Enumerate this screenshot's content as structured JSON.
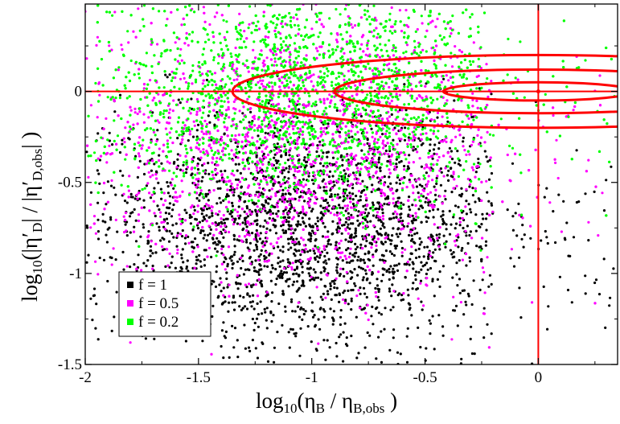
{
  "chart_data": {
    "type": "scatter",
    "xlim": [
      -2,
      0.35
    ],
    "ylim": [
      -1.5,
      0.48
    ],
    "x_ticks": [
      -2,
      -1.5,
      -1,
      -0.5,
      0
    ],
    "y_ticks": [
      -1.5,
      -1,
      -0.5,
      0
    ],
    "x_tick_labels": [
      "-2",
      "-1.5",
      "-1",
      "-0.5",
      "0"
    ],
    "y_tick_labels": [
      "-1.5",
      "-1",
      "-0.5",
      "0"
    ],
    "xlabel": {
      "prefix": "log",
      "base": "10",
      "open": "(η",
      "sub1": "B",
      "mid": " / η",
      "sub2": "B,obs",
      "close": " )"
    },
    "ylabel": {
      "prefix": "log",
      "base": "10",
      "open": "(|η′",
      "sub1": "D",
      "mid": "| / |η′",
      "sub2": "D,obs",
      "close": "| )"
    },
    "grid": false,
    "legend_position": "bottom-left",
    "series": [
      {
        "name": "f = 1",
        "color": "#000000",
        "x_range": [
          -2,
          0.35
        ],
        "y_range": [
          -1.5,
          0.1
        ],
        "density_center": {
          "x": -1.0,
          "y": -0.75
        },
        "approx_count": 2600
      },
      {
        "name": "f = 0.5",
        "color": "#ff00ff",
        "x_range": [
          -2,
          0.3
        ],
        "y_range": [
          -1.45,
          0.48
        ],
        "density_center": {
          "x": -1.0,
          "y": -0.3
        },
        "approx_count": 2800
      },
      {
        "name": "f = 0.2",
        "color": "#00ff00",
        "x_range": [
          -2,
          0.35
        ],
        "y_range": [
          -1.35,
          0.48
        ],
        "density_center": {
          "x": -1.0,
          "y": 0.0
        },
        "approx_count": 3200
      }
    ],
    "reference_lines": [
      {
        "axis": "x",
        "value": 0,
        "color": "#ff0000"
      },
      {
        "axis": "y",
        "value": 0,
        "color": "#ff0000"
      }
    ],
    "contours": {
      "color": "#ff0000",
      "center": {
        "x": 0,
        "y": 0
      },
      "ellipses": [
        {
          "rx": 0.42,
          "ry": 0.05
        },
        {
          "rx": 0.9,
          "ry": 0.12
        },
        {
          "rx": 1.35,
          "ry": 0.2
        }
      ]
    }
  }
}
